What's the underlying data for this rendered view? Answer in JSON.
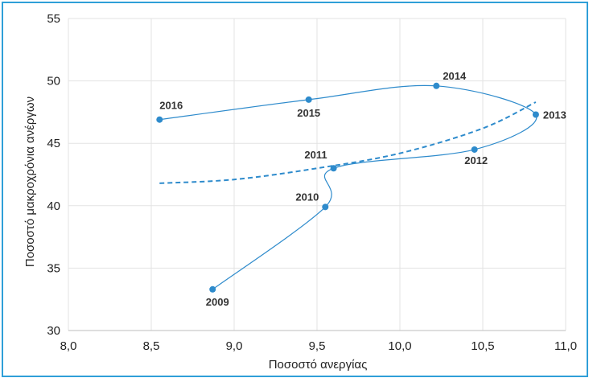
{
  "chart_data": {
    "type": "scatter",
    "xlabel": "Ποσοστό ανεργίας",
    "ylabel": "Ποσοστό μακροχρόνια ανέργων",
    "xlim": [
      8.0,
      11.0
    ],
    "ylim": [
      30,
      55
    ],
    "x_ticks": [
      "8,0",
      "8,5",
      "9,0",
      "9,5",
      "10,0",
      "10,5",
      "11,0"
    ],
    "y_ticks": [
      "30",
      "35",
      "40",
      "45",
      "50",
      "55"
    ],
    "grid": true,
    "series": [
      {
        "points": [
          {
            "label": "2009",
            "x": 8.87,
            "y": 33.3
          },
          {
            "label": "2010",
            "x": 9.55,
            "y": 39.9
          },
          {
            "label": "2011",
            "x": 9.6,
            "y": 43.0
          },
          {
            "label": "2012",
            "x": 10.45,
            "y": 44.5
          },
          {
            "label": "2013",
            "x": 10.82,
            "y": 47.3
          },
          {
            "label": "2014",
            "x": 10.22,
            "y": 49.6
          },
          {
            "label": "2015",
            "x": 9.45,
            "y": 48.5
          },
          {
            "label": "2016",
            "x": 8.55,
            "y": 46.9
          }
        ]
      }
    ],
    "trendline": {
      "style": "dashed",
      "points": [
        [
          8.55,
          41.8
        ],
        [
          9.0,
          42.1
        ],
        [
          9.5,
          43.0
        ],
        [
          10.0,
          44.2
        ],
        [
          10.5,
          46.2
        ],
        [
          10.82,
          48.3
        ]
      ]
    },
    "colors": {
      "series": "#2e8bcc",
      "frame": "#2f9fd8",
      "grid": "#e3e3e3"
    }
  }
}
